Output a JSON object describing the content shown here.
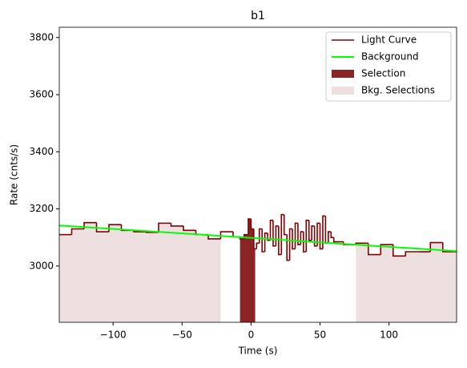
{
  "chart_data": {
    "type": "step",
    "title": "b1",
    "xlabel": "Time (s)",
    "ylabel": "Rate (cnts/s)",
    "xlim": [
      -139,
      149
    ],
    "ylim": [
      2803,
      3836
    ],
    "xticks": [
      {
        "value": -100,
        "label": "−100"
      },
      {
        "value": -50,
        "label": "−50"
      },
      0,
      50,
      100
    ],
    "yticks": [
      3000,
      3200,
      3400,
      3600,
      3800
    ],
    "legend": "upper right",
    "series": [
      {
        "name": "Light Curve",
        "color": "#800000",
        "x": [
          -139,
          -130,
          -121,
          -112,
          -103,
          -94,
          -85,
          -76,
          -67,
          -58,
          -49,
          -40,
          -31,
          -22,
          -13,
          -8,
          -5,
          -2,
          0,
          2,
          4,
          6,
          8,
          10,
          12,
          14,
          16,
          18,
          20,
          22,
          24,
          26,
          28,
          30,
          32,
          34,
          36,
          38,
          40,
          42,
          44,
          46,
          48,
          50,
          52,
          54,
          56,
          58,
          60,
          67,
          76,
          85,
          94,
          103,
          112,
          121,
          130,
          139
        ],
        "values": [
          3110,
          3130,
          3152,
          3120,
          3145,
          3125,
          3120,
          3118,
          3150,
          3140,
          3125,
          3110,
          3095,
          3120,
          3102,
          3095,
          3110,
          3165,
          3130,
          3060,
          3080,
          3130,
          3050,
          3115,
          3090,
          3160,
          3070,
          3140,
          3040,
          3180,
          3110,
          3020,
          3130,
          3060,
          3150,
          3075,
          3120,
          3050,
          3160,
          3090,
          3140,
          3070,
          3150,
          3060,
          3175,
          3080,
          3120,
          3100,
          3085,
          3075,
          3080,
          3040,
          3075,
          3035,
          3050,
          3050,
          3082,
          3050
        ]
      },
      {
        "name": "Background",
        "color": "#00ff00",
        "x": [
          -139,
          149
        ],
        "values": [
          3142,
          3052
        ]
      }
    ],
    "selection": {
      "name": "Selection",
      "color": "#8b2525",
      "xrange": [
        -8,
        3
      ]
    },
    "bkg_selections": {
      "name": "Bkg. Selections",
      "color": "#eee0e0",
      "ranges": [
        [
          -139,
          -22
        ],
        [
          76,
          149
        ]
      ]
    }
  }
}
